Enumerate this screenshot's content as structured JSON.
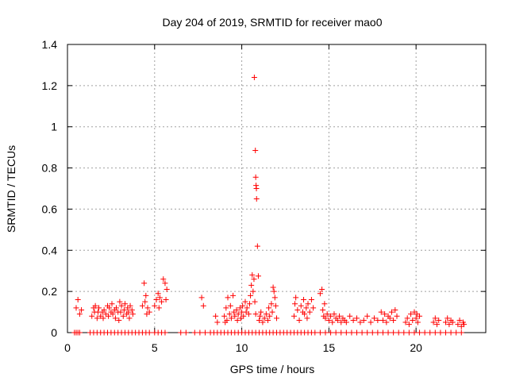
{
  "chart_data": {
    "type": "scatter",
    "title": "Day 204 of 2019, SRMTID for receiver mao0",
    "xlabel": "GPS time / hours",
    "ylabel": "SRMTID / TECUs",
    "xlim": [
      0,
      24
    ],
    "ylim": [
      0,
      1.4
    ],
    "x_ticks": [
      {
        "value": 0,
        "label": "0"
      },
      {
        "value": 5,
        "label": "5"
      },
      {
        "value": 10,
        "label": "10"
      },
      {
        "value": 15,
        "label": "15"
      },
      {
        "value": 20,
        "label": "20"
      }
    ],
    "y_ticks": [
      {
        "value": 0,
        "label": "0"
      },
      {
        "value": 0.2,
        "label": "0.2"
      },
      {
        "value": 0.4,
        "label": "0.4"
      },
      {
        "value": 0.6,
        "label": "0.6"
      },
      {
        "value": 0.8,
        "label": "0.8"
      },
      {
        "value": 1.0,
        "label": "1"
      },
      {
        "value": 1.2,
        "label": "1.2"
      },
      {
        "value": 1.4,
        "label": "1.4"
      }
    ],
    "grid": true,
    "marker": "+",
    "series": [
      {
        "name": "SRMTID",
        "color": "#ff0000",
        "points": [
          [
            0.5,
            0.12
          ],
          [
            0.6,
            0.16
          ],
          [
            0.7,
            0.09
          ],
          [
            0.8,
            0.11
          ],
          [
            1.4,
            0.08
          ],
          [
            1.5,
            0.12
          ],
          [
            1.55,
            0.1
          ],
          [
            1.6,
            0.13
          ],
          [
            1.7,
            0.07
          ],
          [
            1.75,
            0.1
          ],
          [
            1.8,
            0.12
          ],
          [
            1.9,
            0.08
          ],
          [
            2.0,
            0.1
          ],
          [
            2.05,
            0.07
          ],
          [
            2.1,
            0.11
          ],
          [
            2.2,
            0.09
          ],
          [
            2.3,
            0.13
          ],
          [
            2.35,
            0.08
          ],
          [
            2.4,
            0.12
          ],
          [
            2.5,
            0.1
          ],
          [
            2.55,
            0.14
          ],
          [
            2.6,
            0.09
          ],
          [
            2.7,
            0.11
          ],
          [
            2.75,
            0.07
          ],
          [
            2.8,
            0.12
          ],
          [
            2.9,
            0.1
          ],
          [
            2.95,
            0.06
          ],
          [
            3.0,
            0.15
          ],
          [
            3.05,
            0.1
          ],
          [
            3.1,
            0.13
          ],
          [
            3.2,
            0.08
          ],
          [
            3.25,
            0.11
          ],
          [
            3.3,
            0.14
          ],
          [
            3.4,
            0.09
          ],
          [
            3.45,
            0.12
          ],
          [
            3.5,
            0.1
          ],
          [
            3.55,
            0.07
          ],
          [
            3.6,
            0.13
          ],
          [
            3.7,
            0.11
          ],
          [
            3.75,
            0.09
          ],
          [
            4.3,
            0.13
          ],
          [
            4.4,
            0.24
          ],
          [
            4.45,
            0.15
          ],
          [
            4.5,
            0.18
          ],
          [
            4.55,
            0.09
          ],
          [
            4.6,
            0.12
          ],
          [
            4.7,
            0.1
          ],
          [
            5.0,
            0.13
          ],
          [
            5.1,
            0.16
          ],
          [
            5.2,
            0.19
          ],
          [
            5.25,
            0.12
          ],
          [
            5.3,
            0.17
          ],
          [
            5.4,
            0.15
          ],
          [
            5.5,
            0.26
          ],
          [
            5.6,
            0.24
          ],
          [
            5.65,
            0.16
          ],
          [
            5.7,
            0.21
          ],
          [
            7.7,
            0.17
          ],
          [
            7.8,
            0.13
          ],
          [
            8.5,
            0.08
          ],
          [
            8.6,
            0.05
          ],
          [
            9.0,
            0.08
          ],
          [
            9.05,
            0.05
          ],
          [
            9.1,
            0.12
          ],
          [
            9.15,
            0.06
          ],
          [
            9.2,
            0.17
          ],
          [
            9.3,
            0.09
          ],
          [
            9.35,
            0.13
          ],
          [
            9.4,
            0.07
          ],
          [
            9.5,
            0.18
          ],
          [
            9.55,
            0.1
          ],
          [
            9.6,
            0.08
          ],
          [
            9.7,
            0.11
          ],
          [
            9.75,
            0.06
          ],
          [
            9.8,
            0.09
          ],
          [
            9.9,
            0.12
          ],
          [
            9.95,
            0.07
          ],
          [
            10.0,
            0.1
          ],
          [
            10.05,
            0.13
          ],
          [
            10.1,
            0.08
          ],
          [
            10.2,
            0.15
          ],
          [
            10.25,
            0.1
          ],
          [
            10.3,
            0.12
          ],
          [
            10.4,
            0.09
          ],
          [
            10.45,
            0.14
          ],
          [
            10.5,
            0.18
          ],
          [
            10.55,
            0.23
          ],
          [
            10.6,
            0.28
          ],
          [
            10.65,
            0.2
          ],
          [
            10.7,
            0.26
          ],
          [
            10.75,
            0.15
          ],
          [
            10.8,
            0.09
          ],
          [
            10.72,
            1.24
          ],
          [
            10.78,
            0.885
          ],
          [
            10.8,
            0.755
          ],
          [
            10.82,
            0.715
          ],
          [
            10.84,
            0.7
          ],
          [
            10.85,
            0.65
          ],
          [
            10.9,
            0.42
          ],
          [
            10.95,
            0.275
          ],
          [
            11.0,
            0.06
          ],
          [
            11.05,
            0.08
          ],
          [
            11.1,
            0.1
          ],
          [
            11.2,
            0.05
          ],
          [
            11.3,
            0.07
          ],
          [
            11.4,
            0.09
          ],
          [
            11.5,
            0.06
          ],
          [
            11.55,
            0.12
          ],
          [
            11.6,
            0.08
          ],
          [
            11.7,
            0.14
          ],
          [
            11.75,
            0.1
          ],
          [
            11.8,
            0.22
          ],
          [
            11.85,
            0.2
          ],
          [
            11.9,
            0.17
          ],
          [
            11.95,
            0.13
          ],
          [
            12.0,
            0.07
          ],
          [
            13.0,
            0.08
          ],
          [
            13.05,
            0.14
          ],
          [
            13.1,
            0.17
          ],
          [
            13.2,
            0.11
          ],
          [
            13.3,
            0.06
          ],
          [
            13.4,
            0.13
          ],
          [
            13.5,
            0.1
          ],
          [
            13.55,
            0.16
          ],
          [
            13.6,
            0.09
          ],
          [
            13.7,
            0.12
          ],
          [
            13.75,
            0.07
          ],
          [
            13.8,
            0.14
          ],
          [
            13.9,
            0.1
          ],
          [
            14.0,
            0.16
          ],
          [
            14.1,
            0.12
          ],
          [
            14.5,
            0.19
          ],
          [
            14.6,
            0.21
          ],
          [
            14.65,
            0.11
          ],
          [
            14.7,
            0.08
          ],
          [
            14.75,
            0.14
          ],
          [
            14.8,
            0.07
          ],
          [
            14.9,
            0.09
          ],
          [
            15.0,
            0.06
          ],
          [
            15.1,
            0.08
          ],
          [
            15.2,
            0.05
          ],
          [
            15.3,
            0.09
          ],
          [
            15.4,
            0.07
          ],
          [
            15.5,
            0.06
          ],
          [
            15.6,
            0.08
          ],
          [
            15.7,
            0.05
          ],
          [
            15.8,
            0.07
          ],
          [
            15.9,
            0.06
          ],
          [
            16.0,
            0.05
          ],
          [
            16.2,
            0.08
          ],
          [
            16.4,
            0.06
          ],
          [
            16.6,
            0.07
          ],
          [
            16.8,
            0.05
          ],
          [
            17.0,
            0.06
          ],
          [
            17.2,
            0.08
          ],
          [
            17.4,
            0.05
          ],
          [
            17.6,
            0.07
          ],
          [
            17.8,
            0.06
          ],
          [
            18.0,
            0.1
          ],
          [
            18.1,
            0.06
          ],
          [
            18.2,
            0.09
          ],
          [
            18.3,
            0.05
          ],
          [
            18.4,
            0.08
          ],
          [
            18.5,
            0.07
          ],
          [
            18.6,
            0.1
          ],
          [
            18.7,
            0.06
          ],
          [
            18.8,
            0.11
          ],
          [
            18.9,
            0.08
          ],
          [
            19.4,
            0.05
          ],
          [
            19.5,
            0.07
          ],
          [
            19.6,
            0.04
          ],
          [
            19.7,
            0.09
          ],
          [
            19.8,
            0.06
          ],
          [
            19.9,
            0.1
          ],
          [
            20.0,
            0.07
          ],
          [
            20.05,
            0.09
          ],
          [
            20.1,
            0.05
          ],
          [
            20.2,
            0.08
          ],
          [
            21.0,
            0.05
          ],
          [
            21.1,
            0.07
          ],
          [
            21.2,
            0.04
          ],
          [
            21.3,
            0.06
          ],
          [
            21.7,
            0.05
          ],
          [
            21.8,
            0.07
          ],
          [
            21.9,
            0.04
          ],
          [
            22.0,
            0.06
          ],
          [
            22.1,
            0.05
          ],
          [
            22.4,
            0.04
          ],
          [
            22.5,
            0.06
          ],
          [
            22.6,
            0.03
          ],
          [
            22.7,
            0.05
          ],
          [
            22.75,
            0.04
          ],
          [
            0.4,
            0.0
          ],
          [
            0.5,
            0.0
          ],
          [
            0.6,
            0.0
          ],
          [
            0.7,
            0.0
          ],
          [
            1.3,
            0.0
          ],
          [
            1.5,
            0.0
          ],
          [
            1.7,
            0.0
          ],
          [
            1.9,
            0.0
          ],
          [
            2.1,
            0.0
          ],
          [
            2.3,
            0.0
          ],
          [
            2.5,
            0.0
          ],
          [
            2.7,
            0.0
          ],
          [
            2.9,
            0.0
          ],
          [
            3.1,
            0.0
          ],
          [
            3.3,
            0.0
          ],
          [
            3.5,
            0.0
          ],
          [
            3.7,
            0.0
          ],
          [
            3.9,
            0.0
          ],
          [
            4.1,
            0.0
          ],
          [
            4.3,
            0.0
          ],
          [
            4.5,
            0.0
          ],
          [
            4.7,
            0.0
          ],
          [
            5.0,
            0.0
          ],
          [
            5.2,
            0.0
          ],
          [
            5.4,
            0.0
          ],
          [
            5.6,
            0.0
          ],
          [
            6.5,
            0.0
          ],
          [
            6.8,
            0.0
          ],
          [
            7.3,
            0.0
          ],
          [
            7.6,
            0.0
          ],
          [
            7.9,
            0.0
          ],
          [
            8.2,
            0.0
          ],
          [
            8.4,
            0.0
          ],
          [
            8.6,
            0.0
          ],
          [
            8.8,
            0.0
          ],
          [
            9.0,
            0.0
          ],
          [
            9.2,
            0.0
          ],
          [
            9.4,
            0.0
          ],
          [
            9.6,
            0.0
          ],
          [
            9.8,
            0.0
          ],
          [
            10.0,
            0.0
          ],
          [
            10.2,
            0.0
          ],
          [
            10.4,
            0.0
          ],
          [
            10.6,
            0.0
          ],
          [
            10.8,
            0.0
          ],
          [
            11.0,
            0.0
          ],
          [
            11.2,
            0.0
          ],
          [
            11.4,
            0.0
          ],
          [
            11.6,
            0.0
          ],
          [
            11.8,
            0.0
          ],
          [
            12.0,
            0.0
          ],
          [
            12.2,
            0.0
          ],
          [
            12.4,
            0.0
          ],
          [
            12.6,
            0.0
          ],
          [
            12.8,
            0.0
          ],
          [
            13.0,
            0.0
          ],
          [
            13.2,
            0.0
          ],
          [
            13.4,
            0.0
          ],
          [
            13.6,
            0.0
          ],
          [
            13.8,
            0.0
          ],
          [
            14.0,
            0.0
          ],
          [
            14.2,
            0.0
          ],
          [
            14.5,
            0.0
          ],
          [
            14.8,
            0.0
          ],
          [
            15.1,
            0.0
          ],
          [
            15.4,
            0.0
          ],
          [
            15.7,
            0.0
          ],
          [
            16.0,
            0.0
          ],
          [
            16.3,
            0.0
          ],
          [
            16.6,
            0.0
          ],
          [
            16.9,
            0.0
          ],
          [
            17.2,
            0.0
          ],
          [
            17.5,
            0.0
          ],
          [
            17.8,
            0.0
          ],
          [
            18.1,
            0.0
          ],
          [
            18.4,
            0.0
          ],
          [
            18.7,
            0.0
          ],
          [
            19.0,
            0.0
          ],
          [
            19.3,
            0.0
          ],
          [
            19.6,
            0.0
          ],
          [
            19.9,
            0.0
          ],
          [
            20.2,
            0.0
          ],
          [
            20.5,
            0.0
          ],
          [
            20.8,
            0.0
          ],
          [
            21.1,
            0.0
          ],
          [
            21.4,
            0.0
          ],
          [
            21.7,
            0.0
          ],
          [
            22.0,
            0.0
          ],
          [
            22.3,
            0.0
          ],
          [
            22.6,
            0.0
          ]
        ]
      }
    ]
  }
}
